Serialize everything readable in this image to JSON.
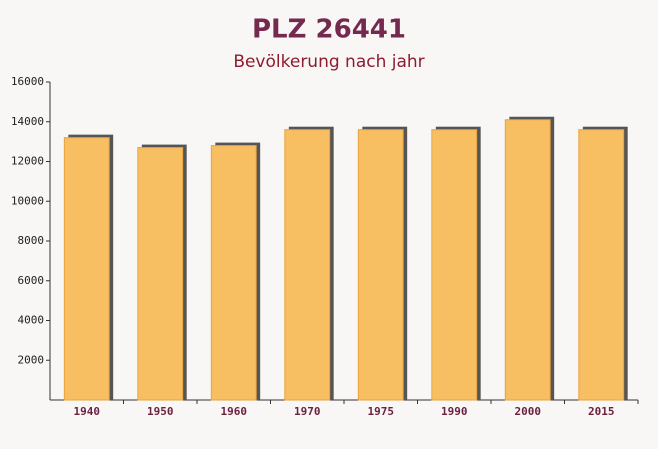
{
  "chart_data": {
    "type": "bar",
    "title": "PLZ 26441",
    "subtitle": "Bevölkerung nach jahr",
    "categories": [
      "1940",
      "1950",
      "1960",
      "1970",
      "1975",
      "1990",
      "2000",
      "2015"
    ],
    "values": [
      13200,
      12700,
      12800,
      13600,
      13600,
      13600,
      14100,
      13600
    ],
    "color": "#f7bf62",
    "ylim": [
      0,
      16000
    ],
    "yticks": [
      2000,
      4000,
      6000,
      8000,
      10000,
      12000,
      14000,
      16000
    ],
    "grid": false
  }
}
